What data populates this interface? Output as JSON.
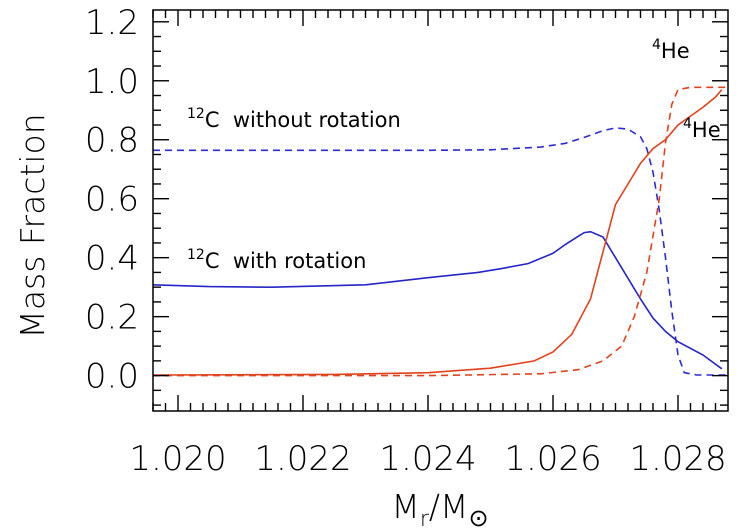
{
  "chart_data": {
    "type": "line",
    "xlabel": {
      "base": "M",
      "sub1": "r",
      "sep": "/M",
      "sub2": "⊙"
    },
    "ylabel": "Mass Fraction",
    "xlim": [
      1.0196,
      1.0288
    ],
    "ylim": [
      -0.12,
      1.24
    ],
    "x_ticks": [
      "1.020",
      "1.022",
      "1.024",
      "1.026",
      "1.028"
    ],
    "y_ticks": [
      "0.0",
      "0.2",
      "0.4",
      "0.6",
      "0.8",
      "1.0",
      "1.2"
    ],
    "grid": false,
    "annotations": [
      {
        "sup": "12",
        "text": "C  without rotation"
      },
      {
        "sup": "12",
        "text": "C  with rotation"
      },
      {
        "sup": "4",
        "text": "He"
      },
      {
        "sup": "4",
        "text": "He"
      }
    ],
    "series": [
      {
        "label_ref": "12C without rotation",
        "color": "#2b2bd6",
        "dash": true,
        "points": [
          [
            1.0196,
            0.764
          ],
          [
            1.022,
            0.764
          ],
          [
            1.024,
            0.764
          ],
          [
            1.025,
            0.766
          ],
          [
            1.0258,
            0.775
          ],
          [
            1.0262,
            0.788
          ],
          [
            1.0265,
            0.808
          ],
          [
            1.0268,
            0.831
          ],
          [
            1.027,
            0.84
          ],
          [
            1.0272,
            0.836
          ],
          [
            1.0274,
            0.81
          ],
          [
            1.0275,
            0.77
          ],
          [
            1.0276,
            0.69
          ],
          [
            1.0277,
            0.56
          ],
          [
            1.0278,
            0.4
          ],
          [
            1.0279,
            0.22
          ],
          [
            1.028,
            0.07
          ],
          [
            1.0281,
            0.01
          ],
          [
            1.0283,
            0.002
          ],
          [
            1.0288,
            0.002
          ]
        ]
      },
      {
        "label_ref": "12C with rotation",
        "color": "#2525c8",
        "dash": false,
        "points": [
          [
            1.0196,
            0.308
          ],
          [
            1.0205,
            0.302
          ],
          [
            1.0215,
            0.3
          ],
          [
            1.023,
            0.308
          ],
          [
            1.024,
            0.332
          ],
          [
            1.0248,
            0.35
          ],
          [
            1.0252,
            0.364
          ],
          [
            1.0256,
            0.38
          ],
          [
            1.026,
            0.415
          ],
          [
            1.0262,
            0.445
          ],
          [
            1.0264,
            0.472
          ],
          [
            1.0265,
            0.485
          ],
          [
            1.0266,
            0.488
          ],
          [
            1.0268,
            0.47
          ],
          [
            1.027,
            0.4
          ],
          [
            1.0272,
            0.33
          ],
          [
            1.0274,
            0.26
          ],
          [
            1.0276,
            0.195
          ],
          [
            1.0278,
            0.15
          ],
          [
            1.028,
            0.115
          ],
          [
            1.0284,
            0.07
          ],
          [
            1.0287,
            0.023
          ]
        ]
      },
      {
        "label_ref": "4He with rotation",
        "color": "#e2421c",
        "dash": false,
        "points": [
          [
            1.0196,
            0.002
          ],
          [
            1.0225,
            0.004
          ],
          [
            1.024,
            0.01
          ],
          [
            1.025,
            0.025
          ],
          [
            1.0257,
            0.05
          ],
          [
            1.026,
            0.08
          ],
          [
            1.0263,
            0.14
          ],
          [
            1.0266,
            0.26
          ],
          [
            1.0268,
            0.42
          ],
          [
            1.027,
            0.58
          ],
          [
            1.0272,
            0.65
          ],
          [
            1.0274,
            0.72
          ],
          [
            1.0276,
            0.77
          ],
          [
            1.0278,
            0.8
          ],
          [
            1.028,
            0.85
          ],
          [
            1.0282,
            0.88
          ],
          [
            1.0284,
            0.91
          ],
          [
            1.0286,
            0.945
          ],
          [
            1.0287,
            0.97
          ]
        ]
      },
      {
        "label_ref": "4He without rotation",
        "color": "#e2421c",
        "dash": true,
        "points": [
          [
            1.0196,
            0.0
          ],
          [
            1.024,
            0.0
          ],
          [
            1.0258,
            0.006
          ],
          [
            1.0264,
            0.02
          ],
          [
            1.0268,
            0.05
          ],
          [
            1.0271,
            0.1
          ],
          [
            1.0273,
            0.2
          ],
          [
            1.0275,
            0.35
          ],
          [
            1.0277,
            0.6
          ],
          [
            1.0278,
            0.79
          ],
          [
            1.0279,
            0.92
          ],
          [
            1.028,
            0.97
          ],
          [
            1.0282,
            0.978
          ],
          [
            1.0288,
            0.978
          ]
        ]
      }
    ]
  }
}
